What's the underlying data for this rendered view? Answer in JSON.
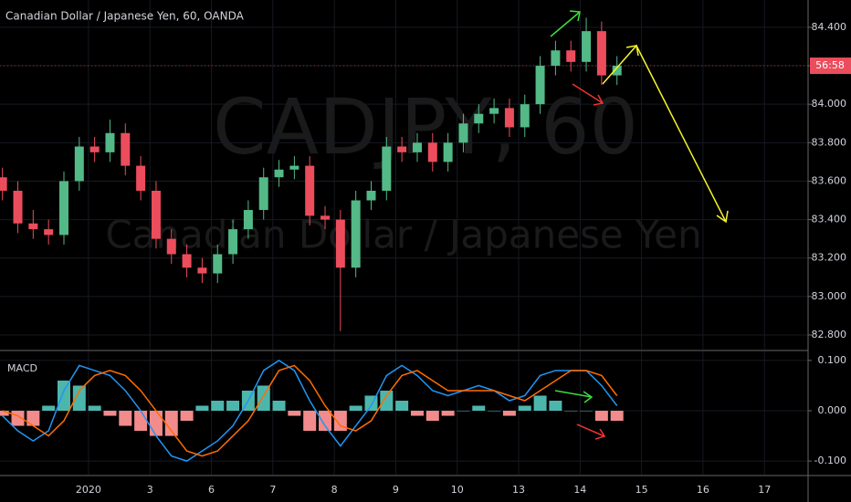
{
  "chart_data": [
    {
      "type": "candlestick",
      "title": "Canadian Dollar / Japanese Yen, 60, OANDA",
      "watermark": "CADJPY, 60",
      "subtitle": "Canadian Dollar / Japanese Yen",
      "countdown_label": "56:58",
      "x": [
        -0.4,
        -0.15,
        0.1,
        0.35,
        0.6,
        0.85,
        1.1,
        1.35,
        1.6,
        1.85,
        2.1,
        2.35,
        2.6,
        2.85,
        3.1,
        3.35,
        3.6,
        3.85,
        4.1,
        4.35,
        4.6,
        4.85,
        5.1,
        5.35,
        5.6,
        5.85,
        6.1,
        6.35,
        6.6,
        6.85,
        7.1,
        7.35,
        7.6,
        7.85,
        8.1,
        8.35,
        8.6,
        8.85,
        9.1,
        9.35,
        9.6
      ],
      "open": [
        83.62,
        83.55,
        83.38,
        83.35,
        83.32,
        83.6,
        83.78,
        83.75,
        83.85,
        83.68,
        83.55,
        83.3,
        83.22,
        83.15,
        83.12,
        83.22,
        83.35,
        83.45,
        83.62,
        83.66,
        83.68,
        83.42,
        83.4,
        83.15,
        83.5,
        83.55,
        83.78,
        83.75,
        83.8,
        83.7,
        83.8,
        83.9,
        83.95,
        83.98,
        83.88,
        84.0,
        84.2,
        84.28,
        84.22,
        84.38,
        84.15
      ],
      "high": [
        83.67,
        83.6,
        83.45,
        83.4,
        83.65,
        83.83,
        83.83,
        83.92,
        83.9,
        83.73,
        83.6,
        83.35,
        83.27,
        83.2,
        83.27,
        83.4,
        83.5,
        83.67,
        83.71,
        83.73,
        83.73,
        83.47,
        83.45,
        83.55,
        83.6,
        83.83,
        83.83,
        83.85,
        83.85,
        83.85,
        83.95,
        84.0,
        84.03,
        84.03,
        84.05,
        84.25,
        84.33,
        84.33,
        84.45,
        84.43,
        84.25
      ],
      "low": [
        83.5,
        83.33,
        83.3,
        83.27,
        83.27,
        83.55,
        83.7,
        83.7,
        83.63,
        83.5,
        83.25,
        83.17,
        83.1,
        83.07,
        83.07,
        83.17,
        83.3,
        83.4,
        83.57,
        83.61,
        83.37,
        83.35,
        82.82,
        83.1,
        83.45,
        83.5,
        83.7,
        83.7,
        83.65,
        83.65,
        83.75,
        83.85,
        83.9,
        83.83,
        83.83,
        83.95,
        84.15,
        84.17,
        84.17,
        84.1,
        84.1
      ],
      "close": [
        83.55,
        83.38,
        83.35,
        83.32,
        83.6,
        83.78,
        83.75,
        83.85,
        83.68,
        83.55,
        83.3,
        83.22,
        83.15,
        83.12,
        83.22,
        83.35,
        83.45,
        83.62,
        83.66,
        83.68,
        83.42,
        83.4,
        83.15,
        83.5,
        83.55,
        83.78,
        83.75,
        83.8,
        83.7,
        83.8,
        83.9,
        83.95,
        83.98,
        83.88,
        84.0,
        84.2,
        84.28,
        84.22,
        84.38,
        84.15,
        84.2
      ],
      "up_color": "#53b987",
      "down_color": "#eb4d5c",
      "xlim": [
        -0.44,
        12.71
      ],
      "ylim": [
        82.724,
        84.542
      ],
      "yticks": [
        {
          "value": 84.4,
          "label": "84.400"
        },
        {
          "value": 84.2,
          "label": "84.200"
        },
        {
          "value": 84.0,
          "label": "84.000"
        },
        {
          "value": 83.8,
          "label": "83.800"
        },
        {
          "value": 83.6,
          "label": "83.600"
        },
        {
          "value": 83.4,
          "label": "83.400"
        },
        {
          "value": 83.2,
          "label": "83.200"
        },
        {
          "value": 83.0,
          "label": "83.000"
        },
        {
          "value": 82.8,
          "label": "82.800"
        }
      ],
      "grid": true
    },
    {
      "type": "macd",
      "title": "MACD",
      "x": [
        -0.4,
        -0.15,
        0.1,
        0.35,
        0.6,
        0.85,
        1.1,
        1.35,
        1.6,
        1.85,
        2.1,
        2.35,
        2.6,
        2.85,
        3.1,
        3.35,
        3.6,
        3.85,
        4.1,
        4.35,
        4.6,
        4.85,
        5.1,
        5.35,
        5.6,
        5.85,
        6.1,
        6.35,
        6.6,
        6.85,
        7.1,
        7.35,
        7.6,
        7.85,
        8.1,
        8.35,
        8.6,
        8.85,
        9.1,
        9.35,
        9.6
      ],
      "series": [
        {
          "name": "MACD",
          "color": "#2196f3",
          "values": [
            -0.01,
            -0.04,
            -0.06,
            -0.04,
            0.04,
            0.09,
            0.08,
            0.07,
            0.04,
            0.0,
            -0.05,
            -0.09,
            -0.1,
            -0.08,
            -0.06,
            -0.03,
            0.02,
            0.08,
            0.1,
            0.08,
            0.02,
            -0.03,
            -0.07,
            -0.03,
            0.01,
            0.07,
            0.09,
            0.07,
            0.04,
            0.03,
            0.04,
            0.05,
            0.04,
            0.02,
            0.03,
            0.07,
            0.08,
            0.08,
            0.08,
            0.05,
            0.01
          ]
        },
        {
          "name": "Signal",
          "color": "#ff6d00",
          "values": [
            0.0,
            -0.01,
            -0.03,
            -0.05,
            -0.02,
            0.04,
            0.07,
            0.08,
            0.07,
            0.04,
            0.0,
            -0.04,
            -0.08,
            -0.09,
            -0.08,
            -0.05,
            -0.02,
            0.03,
            0.08,
            0.09,
            0.06,
            0.01,
            -0.03,
            -0.04,
            -0.02,
            0.03,
            0.07,
            0.08,
            0.06,
            0.04,
            0.04,
            0.04,
            0.04,
            0.03,
            0.02,
            0.04,
            0.06,
            0.08,
            0.08,
            0.07,
            0.03
          ]
        }
      ],
      "histogram": [
        -0.01,
        -0.03,
        -0.03,
        0.01,
        0.06,
        0.05,
        0.01,
        -0.01,
        -0.03,
        -0.04,
        -0.05,
        -0.05,
        -0.02,
        0.01,
        0.02,
        0.02,
        0.04,
        0.05,
        0.02,
        -0.01,
        -0.04,
        -0.04,
        -0.04,
        0.01,
        0.03,
        0.04,
        0.02,
        -0.01,
        -0.02,
        -0.01,
        0.0,
        0.01,
        0.0,
        -0.01,
        0.01,
        0.03,
        0.02,
        0.0,
        0.0,
        -0.02,
        -0.02
      ],
      "histogram_colors": [
        "#4db6ac",
        "#f28b8b"
      ],
      "xlim": [
        -0.44,
        12.71
      ],
      "ylim": [
        -0.127,
        0.118
      ],
      "yticks": [
        {
          "value": 0.1,
          "label": "0.100"
        },
        {
          "value": 0.0,
          "label": "0.000"
        },
        {
          "value": -0.1,
          "label": "-0.100"
        }
      ],
      "xticks": [
        {
          "value": 1,
          "label": "2020"
        },
        {
          "value": 2,
          "label": "3"
        },
        {
          "value": 3,
          "label": "6"
        },
        {
          "value": 4,
          "label": "7"
        },
        {
          "value": 5,
          "label": "8"
        },
        {
          "value": 6,
          "label": "9"
        },
        {
          "value": 7,
          "label": "10"
        },
        {
          "value": 8,
          "label": "13"
        },
        {
          "value": 9,
          "label": "14"
        },
        {
          "value": 10,
          "label": "15"
        },
        {
          "value": 11,
          "label": "16"
        },
        {
          "value": 12,
          "label": "17"
        }
      ],
      "grid": true
    }
  ]
}
